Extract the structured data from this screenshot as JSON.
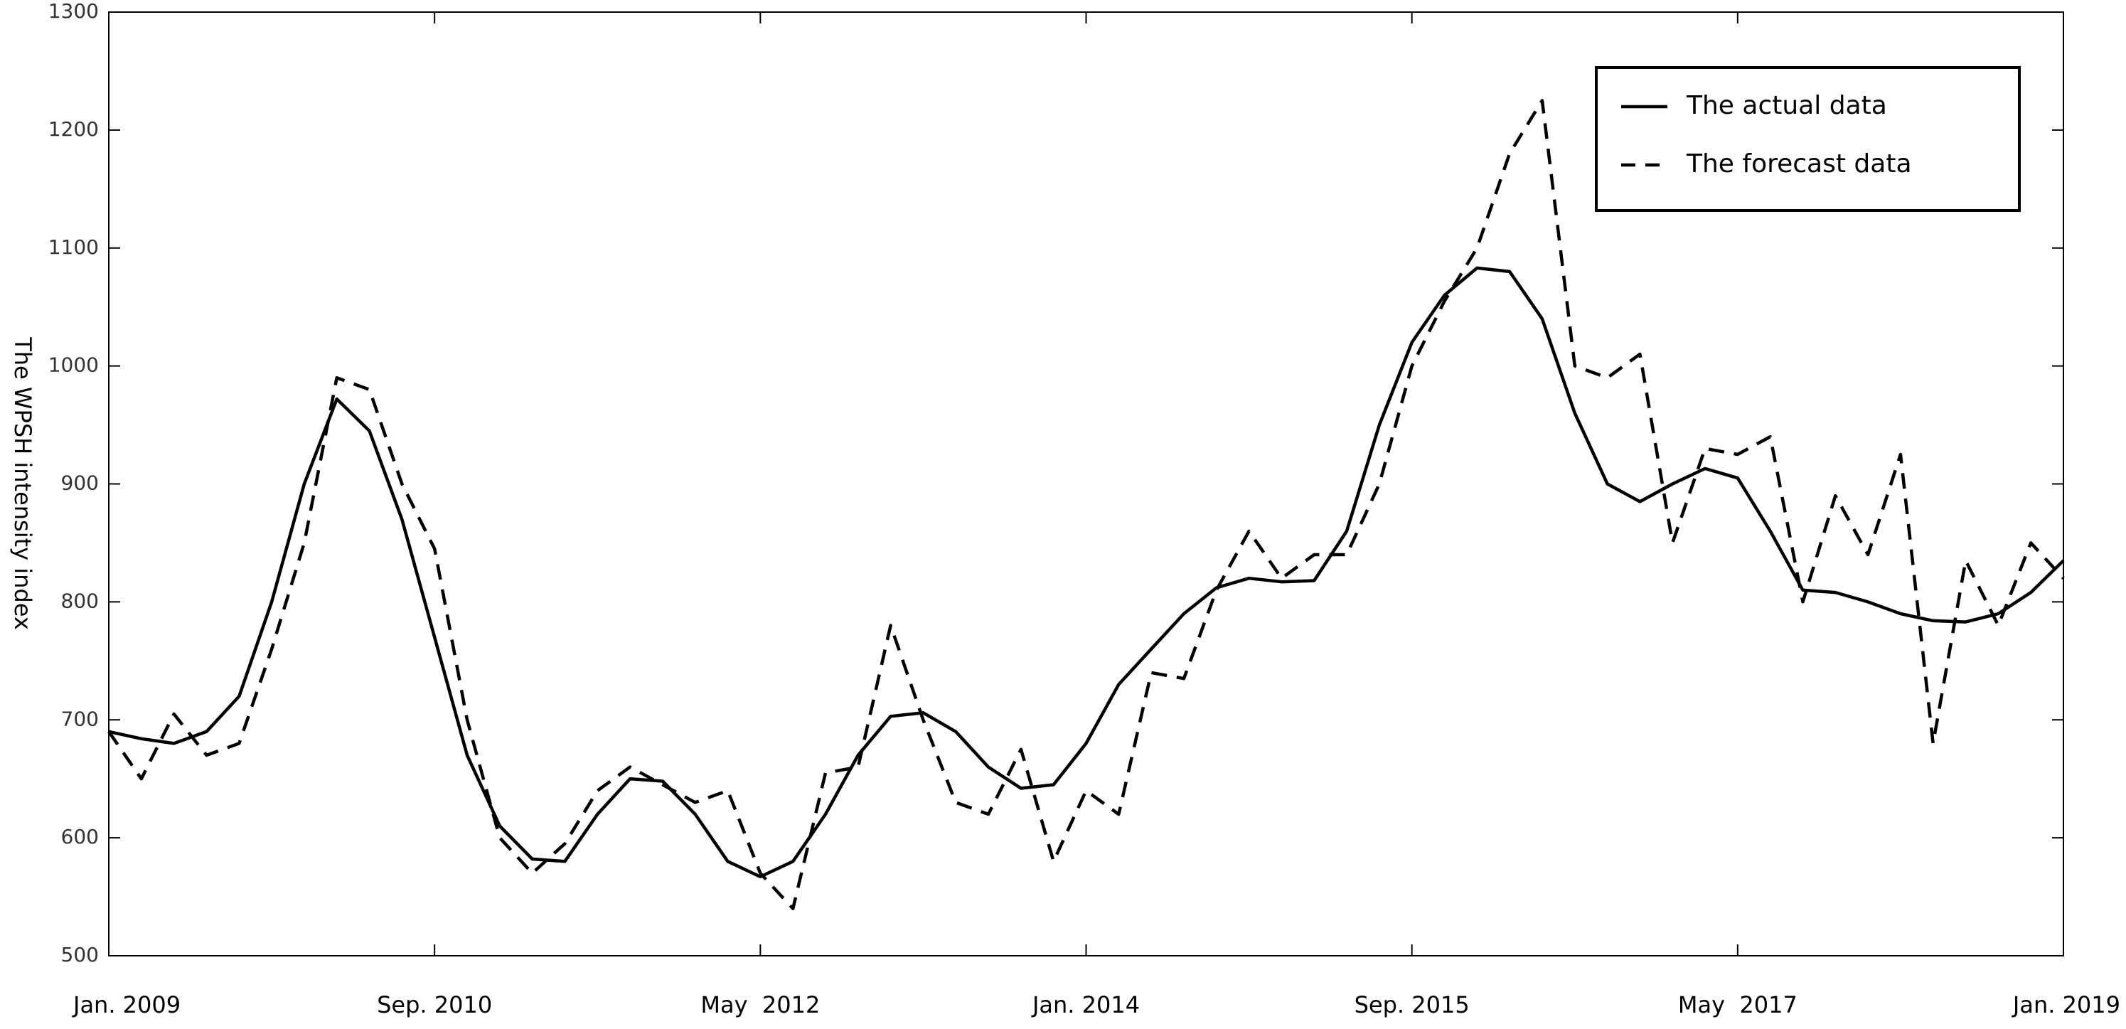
{
  "chart_data": {
    "type": "line",
    "y_label": "The WPSH intensity index",
    "categories": [
      "Jan. 2009",
      null,
      null,
      null,
      null,
      null,
      null,
      null,
      null,
      null,
      "Sep. 2010",
      null,
      null,
      null,
      null,
      null,
      null,
      null,
      null,
      null,
      "May  2012",
      null,
      null,
      null,
      null,
      null,
      null,
      null,
      null,
      null,
      "Jan. 2014",
      null,
      null,
      null,
      null,
      null,
      null,
      null,
      null,
      null,
      "Sep. 2015",
      null,
      null,
      null,
      null,
      null,
      null,
      null,
      null,
      null,
      "May  2017",
      null,
      null,
      null,
      null,
      null,
      null,
      null,
      null,
      null,
      "Jan. 2019"
    ],
    "series": [
      {
        "name": "The actual data",
        "color": "#000000",
        "dash": false,
        "values": [
          690,
          684,
          680,
          690,
          720,
          800,
          900,
          972,
          945,
          870,
          770,
          670,
          610,
          582,
          580,
          620,
          650,
          648,
          620,
          580,
          567,
          580,
          620,
          670,
          703,
          706,
          690,
          660,
          642,
          645,
          680,
          730,
          760,
          790,
          812,
          820,
          817,
          818,
          860,
          950,
          1020,
          1060,
          1083,
          1080,
          1040,
          960,
          900,
          885,
          900,
          913,
          905,
          860,
          810,
          808,
          800,
          790,
          784,
          783,
          790,
          808,
          835
        ]
      },
      {
        "name": "The forecast data",
        "color": "#000000",
        "dash": true,
        "values": [
          690,
          650,
          705,
          670,
          680,
          760,
          850,
          990,
          980,
          900,
          845,
          700,
          600,
          570,
          595,
          640,
          660,
          645,
          630,
          640,
          570,
          540,
          655,
          660,
          780,
          700,
          630,
          620,
          675,
          580,
          640,
          620,
          740,
          735,
          810,
          860,
          820,
          840,
          840,
          900,
          1000,
          1055,
          1100,
          1180,
          1225,
          1000,
          990,
          1010,
          850,
          930,
          925,
          940,
          800,
          890,
          840,
          925,
          680,
          835,
          780,
          850,
          820
        ]
      }
    ],
    "ylim": [
      500,
      1300
    ],
    "yticks": [
      500,
      600,
      700,
      800,
      900,
      1000,
      1100,
      1200,
      1300
    ],
    "grid": false,
    "legend": "upper-right"
  }
}
